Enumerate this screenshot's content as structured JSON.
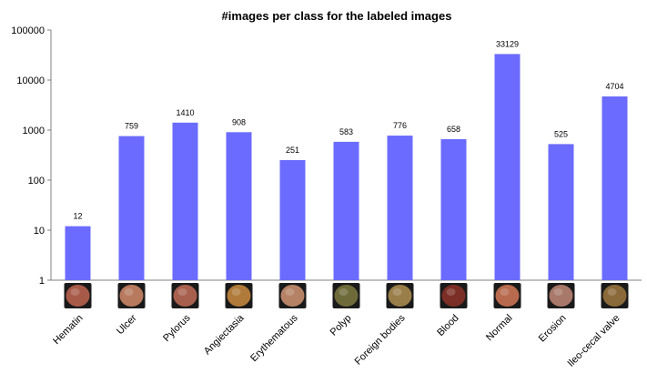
{
  "chart_data": {
    "type": "bar",
    "title": "#images per class for the labeled images",
    "xlabel": "",
    "ylabel": "",
    "yscale": "log",
    "ylim": [
      1,
      100000
    ],
    "yticks": [
      "100000",
      "10000",
      "1000",
      "100",
      "10",
      "1"
    ],
    "grid": false,
    "legend": "none",
    "bar_color": "#6b6bff",
    "categories": [
      "Hematin",
      "Ulcer",
      "Pylorus",
      "Angiectasia",
      "Erythematous",
      "Polyp",
      "Foreign bodies",
      "Blood",
      "Normal",
      "Erosion",
      "Ileo-cecal valve"
    ],
    "values": [
      12,
      759,
      1410,
      908,
      251,
      583,
      776,
      658,
      33129,
      525,
      4704
    ],
    "value_labels": [
      "12",
      "759",
      "1410",
      "908",
      "251",
      "583",
      "776",
      "658",
      "33129",
      "525",
      "4704"
    ],
    "thumbnail_colors": [
      "#a85a48",
      "#b87a5e",
      "#a8604e",
      "#b07a3a",
      "#b58266",
      "#6e6a3a",
      "#9a7e4a",
      "#7a2e26",
      "#b86a4e",
      "#a8786a",
      "#8a6a3a"
    ]
  }
}
